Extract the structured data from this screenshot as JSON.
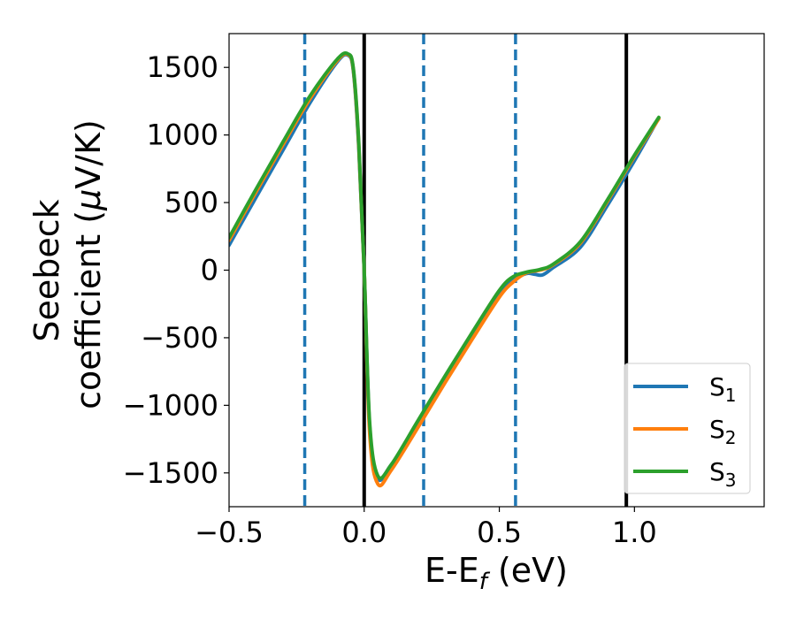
{
  "chart_data": {
    "type": "line",
    "title": "",
    "xlabel": {
      "main": "E-E",
      "sub": "f",
      "unit": " (eV)"
    },
    "ylabel": {
      "line1": "Seebeck",
      "line2": "coefficient  (",
      "mu": "μ",
      "unit": "V/K)"
    },
    "xlim": [
      -0.5,
      1.48
    ],
    "ylim": [
      -1750,
      1750
    ],
    "xticks": [
      {
        "value": -0.5,
        "label": "−0.5"
      },
      {
        "value": 0.0,
        "label": "0.0"
      },
      {
        "value": 0.5,
        "label": "0.5"
      },
      {
        "value": 1.0,
        "label": "1.0"
      }
    ],
    "yticks": [
      {
        "value": 1500,
        "label": "1500"
      },
      {
        "value": 1000,
        "label": "1000"
      },
      {
        "value": 500,
        "label": "500"
      },
      {
        "value": 0,
        "label": "0"
      },
      {
        "value": -500,
        "label": "−500"
      },
      {
        "value": -1000,
        "label": "−1000"
      },
      {
        "value": -1500,
        "label": "−1500"
      }
    ],
    "grid": false,
    "legend_position": "bottom-right",
    "vlines_solid": [
      0.0,
      0.97
    ],
    "vlines_dashed": [
      -0.22,
      0.22,
      0.56
    ],
    "vline_solid_color": "#000000",
    "vline_dashed_color": "#1f77b4",
    "series": [
      {
        "name": "S",
        "sub": "1",
        "color": "#1f77b4",
        "x": [
          -0.5,
          -0.4,
          -0.3,
          -0.2,
          -0.1,
          -0.06,
          -0.04,
          -0.02,
          0.0,
          0.02,
          0.05,
          0.1,
          0.2,
          0.3,
          0.4,
          0.5,
          0.55,
          0.6,
          0.63,
          0.66,
          0.7,
          0.8,
          0.9,
          1.0,
          1.08
        ],
        "y": [
          185,
          540,
          890,
          1240,
          1540,
          1590,
          1470,
          900,
          0,
          -1150,
          -1540,
          -1440,
          -1150,
          -820,
          -500,
          -185,
          -75,
          -25,
          -30,
          -35,
          20,
          170,
          480,
          810,
          1090
        ]
      },
      {
        "name": "S",
        "sub": "2",
        "color": "#ff7f0e",
        "x": [
          -0.5,
          -0.4,
          -0.3,
          -0.2,
          -0.1,
          -0.06,
          -0.04,
          -0.02,
          0.0,
          0.02,
          0.05,
          0.1,
          0.2,
          0.3,
          0.4,
          0.5,
          0.55,
          0.6,
          0.65,
          0.7,
          0.8,
          0.9,
          1.0,
          1.09
        ],
        "y": [
          220,
          580,
          930,
          1270,
          1550,
          1595,
          1480,
          920,
          0,
          -1200,
          -1580,
          -1480,
          -1160,
          -830,
          -510,
          -200,
          -90,
          -20,
          0,
          40,
          200,
          510,
          840,
          1120
        ]
      },
      {
        "name": "S",
        "sub": "3",
        "color": "#2ca02c",
        "x": [
          -0.5,
          -0.4,
          -0.3,
          -0.2,
          -0.1,
          -0.06,
          -0.04,
          -0.02,
          0.0,
          0.02,
          0.05,
          0.1,
          0.2,
          0.3,
          0.4,
          0.5,
          0.55,
          0.6,
          0.65,
          0.7,
          0.8,
          0.9,
          1.0,
          1.09
        ],
        "y": [
          240,
          600,
          950,
          1290,
          1560,
          1600,
          1490,
          940,
          0,
          -1120,
          -1520,
          -1440,
          -1110,
          -780,
          -460,
          -150,
          -50,
          -15,
          5,
          45,
          210,
          520,
          850,
          1130
        ]
      }
    ]
  }
}
